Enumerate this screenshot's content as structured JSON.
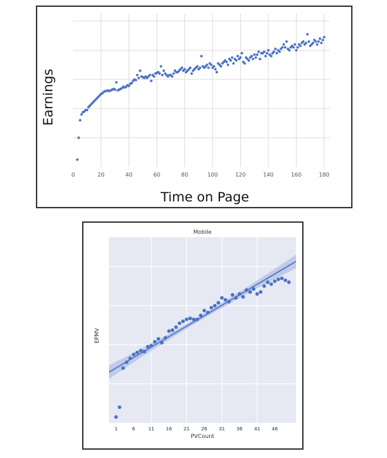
{
  "chart_data": [
    {
      "type": "scatter",
      "title": "",
      "xlabel": "Time on Page",
      "ylabel": "Earnings",
      "xlim": [
        0,
        184
      ],
      "ylim": [
        0,
        10.5
      ],
      "x_ticks": [
        "0",
        "20",
        "40",
        "60",
        "80",
        "100",
        "120",
        "140",
        "160",
        "180"
      ],
      "grid": true,
      "colors": {
        "point": "#4a72c4",
        "grid": "#dddddd"
      },
      "series": [
        {
          "points": [
            [
              3,
              0.5
            ],
            [
              4,
              2.0
            ],
            [
              5,
              3.2
            ],
            [
              6,
              3.6
            ],
            [
              7,
              3.75
            ],
            [
              8,
              3.8
            ],
            [
              9,
              3.9
            ],
            [
              10,
              3.9
            ],
            [
              11,
              4.1
            ],
            [
              12,
              4.2
            ],
            [
              13,
              4.3
            ],
            [
              14,
              4.4
            ],
            [
              15,
              4.5
            ],
            [
              16,
              4.6
            ],
            [
              17,
              4.7
            ],
            [
              18,
              4.8
            ],
            [
              19,
              4.9
            ],
            [
              20,
              5.0
            ],
            [
              21,
              5.05
            ],
            [
              22,
              5.15
            ],
            [
              23,
              5.2
            ],
            [
              24,
              5.2
            ],
            [
              25,
              5.25
            ],
            [
              26,
              5.2
            ],
            [
              27,
              5.25
            ],
            [
              28,
              5.3
            ],
            [
              29,
              5.35
            ],
            [
              30,
              5.3
            ],
            [
              31,
              5.8
            ],
            [
              32,
              5.25
            ],
            [
              33,
              5.3
            ],
            [
              34,
              5.35
            ],
            [
              35,
              5.4
            ],
            [
              36,
              5.5
            ],
            [
              37,
              5.45
            ],
            [
              38,
              5.5
            ],
            [
              39,
              5.6
            ],
            [
              40,
              5.55
            ],
            [
              41,
              5.7
            ],
            [
              42,
              5.75
            ],
            [
              43,
              5.9
            ],
            [
              44,
              6.0
            ],
            [
              45,
              5.95
            ],
            [
              46,
              6.3
            ],
            [
              47,
              6.1
            ],
            [
              48,
              6.6
            ],
            [
              49,
              6.2
            ],
            [
              50,
              6.15
            ],
            [
              51,
              6.1
            ],
            [
              52,
              6.2
            ],
            [
              53,
              6.1
            ],
            [
              54,
              6.2
            ],
            [
              55,
              6.3
            ],
            [
              56,
              5.9
            ],
            [
              57,
              6.3
            ],
            [
              58,
              6.2
            ],
            [
              59,
              6.4
            ],
            [
              60,
              6.45
            ],
            [
              61,
              6.5
            ],
            [
              62,
              6.4
            ],
            [
              63,
              6.9
            ],
            [
              64,
              6.3
            ],
            [
              65,
              6.6
            ],
            [
              66,
              6.4
            ],
            [
              67,
              6.3
            ],
            [
              68,
              6.2
            ],
            [
              69,
              6.3
            ],
            [
              70,
              6.3
            ],
            [
              71,
              6.2
            ],
            [
              72,
              6.4
            ],
            [
              73,
              6.6
            ],
            [
              74,
              6.5
            ],
            [
              75,
              6.5
            ],
            [
              76,
              6.6
            ],
            [
              77,
              6.7
            ],
            [
              78,
              6.8
            ],
            [
              79,
              6.6
            ],
            [
              80,
              6.7
            ],
            [
              81,
              6.5
            ],
            [
              82,
              6.6
            ],
            [
              83,
              6.7
            ],
            [
              84,
              6.8
            ],
            [
              85,
              6.4
            ],
            [
              86,
              6.6
            ],
            [
              87,
              6.7
            ],
            [
              88,
              6.8
            ],
            [
              89,
              6.9
            ],
            [
              90,
              6.7
            ],
            [
              91,
              6.8
            ],
            [
              92,
              7.6
            ],
            [
              93,
              6.9
            ],
            [
              94,
              6.8
            ],
            [
              95,
              6.9
            ],
            [
              96,
              7.0
            ],
            [
              97,
              6.8
            ],
            [
              98,
              7.1
            ],
            [
              99,
              7.0
            ],
            [
              100,
              6.8
            ],
            [
              101,
              6.9
            ],
            [
              102,
              6.7
            ],
            [
              103,
              6.5
            ],
            [
              104,
              7.1
            ],
            [
              105,
              7.0
            ],
            [
              106,
              6.9
            ],
            [
              107,
              7.1
            ],
            [
              108,
              7.2
            ],
            [
              109,
              7.3
            ],
            [
              110,
              7.2
            ],
            [
              111,
              7.0
            ],
            [
              112,
              7.4
            ],
            [
              113,
              7.3
            ],
            [
              114,
              7.5
            ],
            [
              115,
              7.1
            ],
            [
              116,
              7.4
            ],
            [
              117,
              7.3
            ],
            [
              118,
              7.6
            ],
            [
              119,
              7.4
            ],
            [
              120,
              7.5
            ],
            [
              121,
              7.8
            ],
            [
              122,
              7.2
            ],
            [
              123,
              7.1
            ],
            [
              124,
              7.5
            ],
            [
              125,
              7.4
            ],
            [
              126,
              7.3
            ],
            [
              127,
              7.5
            ],
            [
              128,
              7.6
            ],
            [
              129,
              7.4
            ],
            [
              130,
              7.7
            ],
            [
              131,
              7.5
            ],
            [
              132,
              7.7
            ],
            [
              133,
              7.9
            ],
            [
              134,
              7.4
            ],
            [
              135,
              7.8
            ],
            [
              136,
              7.8
            ],
            [
              137,
              7.9
            ],
            [
              138,
              7.6
            ],
            [
              139,
              7.8
            ],
            [
              140,
              8.0
            ],
            [
              141,
              7.7
            ],
            [
              142,
              7.6
            ],
            [
              143,
              7.8
            ],
            [
              144,
              7.9
            ],
            [
              145,
              8.1
            ],
            [
              146,
              7.8
            ],
            [
              147,
              8.0
            ],
            [
              148,
              7.9
            ],
            [
              149,
              8.1
            ],
            [
              150,
              8.2
            ],
            [
              151,
              8.4
            ],
            [
              152,
              8.2
            ],
            [
              153,
              8.6
            ],
            [
              154,
              8.1
            ],
            [
              155,
              8.0
            ],
            [
              156,
              8.2
            ],
            [
              157,
              8.3
            ],
            [
              158,
              8.2
            ],
            [
              159,
              8.4
            ],
            [
              160,
              8.0
            ],
            [
              161,
              8.2
            ],
            [
              162,
              8.4
            ],
            [
              163,
              8.3
            ],
            [
              164,
              8.5
            ],
            [
              165,
              8.6
            ],
            [
              166,
              8.4
            ],
            [
              167,
              8.5
            ],
            [
              168,
              9.1
            ],
            [
              169,
              8.6
            ],
            [
              170,
              8.3
            ],
            [
              171,
              8.4
            ],
            [
              172,
              8.5
            ],
            [
              173,
              8.7
            ],
            [
              174,
              8.6
            ],
            [
              175,
              8.4
            ],
            [
              176,
              8.6
            ],
            [
              177,
              8.8
            ],
            [
              178,
              8.5
            ],
            [
              179,
              8.7
            ],
            [
              180,
              8.9
            ]
          ]
        }
      ]
    },
    {
      "type": "scatter",
      "title": "Mobile",
      "xlabel": "PVCount",
      "ylabel": "EPMV",
      "xlim": [
        -1,
        52
      ],
      "ylim": [
        0,
        9.5
      ],
      "x_ticks": [
        "1",
        "6",
        "11",
        "16",
        "21",
        "26",
        "31",
        "36",
        "41",
        "46"
      ],
      "grid": true,
      "regression": {
        "intercept": 2.7,
        "slope": 0.107,
        "ci_halfwidth_edges": 0.35,
        "ci_halfwidth_center": 0.12
      },
      "colors": {
        "point": "#4a72c4",
        "line": "#4a72c4",
        "band": "#b7c2e6",
        "background": "#e6e9f4",
        "grid": "#ffffff"
      },
      "series": [
        {
          "points": [
            [
              1,
              0.3
            ],
            [
              2,
              0.8
            ],
            [
              3,
              2.8
            ],
            [
              4,
              3.1
            ],
            [
              5,
              3.3
            ],
            [
              6,
              3.5
            ],
            [
              7,
              3.6
            ],
            [
              8,
              3.7
            ],
            [
              9,
              3.65
            ],
            [
              10,
              3.9
            ],
            [
              11,
              3.95
            ],
            [
              12,
              4.15
            ],
            [
              13,
              4.3
            ],
            [
              14,
              4.1
            ],
            [
              15,
              4.35
            ],
            [
              16,
              4.7
            ],
            [
              17,
              4.75
            ],
            [
              18,
              4.9
            ],
            [
              19,
              5.1
            ],
            [
              20,
              5.2
            ],
            [
              21,
              5.3
            ],
            [
              22,
              5.35
            ],
            [
              23,
              5.3
            ],
            [
              24,
              5.3
            ],
            [
              25,
              5.5
            ],
            [
              26,
              5.75
            ],
            [
              27,
              5.65
            ],
            [
              28,
              5.9
            ],
            [
              29,
              6.0
            ],
            [
              30,
              6.15
            ],
            [
              31,
              6.4
            ],
            [
              32,
              6.3
            ],
            [
              33,
              6.2
            ],
            [
              34,
              6.55
            ],
            [
              35,
              6.4
            ],
            [
              36,
              6.6
            ],
            [
              37,
              6.45
            ],
            [
              38,
              6.8
            ],
            [
              39,
              6.7
            ],
            [
              40,
              6.85
            ],
            [
              41,
              6.6
            ],
            [
              42,
              6.7
            ],
            [
              43,
              7.0
            ],
            [
              44,
              7.2
            ],
            [
              45,
              7.1
            ],
            [
              46,
              7.25
            ],
            [
              47,
              7.35
            ],
            [
              48,
              7.4
            ],
            [
              49,
              7.3
            ],
            [
              50,
              7.2
            ]
          ]
        }
      ]
    }
  ]
}
